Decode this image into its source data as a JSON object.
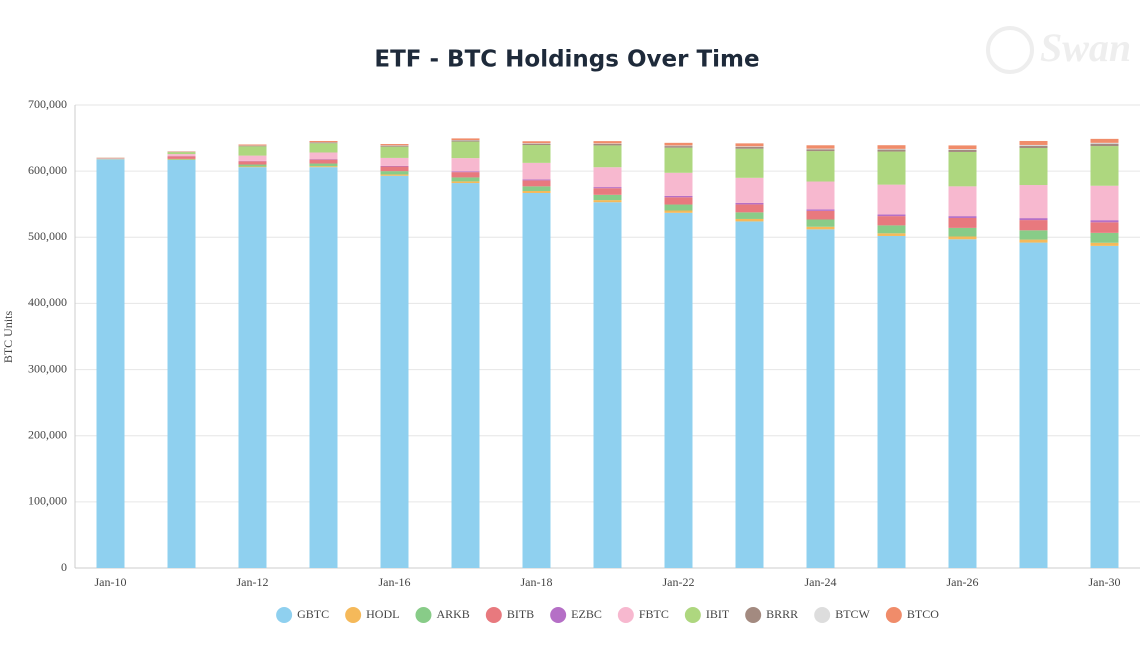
{
  "chart_data": {
    "type": "stacked_bar",
    "title": "ETF - BTC Holdings Over Time",
    "watermark": "Swan",
    "y_label": "BTC Units",
    "categories": [
      "Jan-10",
      null,
      "Jan-12",
      null,
      "Jan-16",
      null,
      "Jan-18",
      null,
      "Jan-22",
      null,
      "Jan-24",
      null,
      "Jan-26",
      null,
      "Jan-30"
    ],
    "series": [
      {
        "name": "GBTC",
        "color": "#8fd0ef",
        "values": [
          618000,
          617000,
          606000,
          606000,
          593000,
          582000,
          567000,
          553000,
          537000,
          524000,
          512000,
          502000,
          497000,
          492000,
          487000
        ]
      },
      {
        "name": "HODL",
        "color": "#f5b95a",
        "values": [
          300,
          500,
          1000,
          1500,
          2000,
          2500,
          3000,
          3200,
          3500,
          3700,
          3900,
          4000,
          4200,
          4500,
          4700
        ]
      },
      {
        "name": "ARKB",
        "color": "#88cc88",
        "values": [
          200,
          1000,
          3000,
          4000,
          5000,
          6000,
          7000,
          8000,
          9000,
          10000,
          11000,
          12000,
          13000,
          14000,
          15000
        ]
      },
      {
        "name": "BITB",
        "color": "#e8797e",
        "values": [
          500,
          4000,
          5000,
          6000,
          7000,
          8000,
          9000,
          10000,
          11000,
          12000,
          13000,
          14000,
          15000,
          15500,
          16000
        ]
      },
      {
        "name": "EZBC",
        "color": "#b56fc6",
        "values": [
          100,
          300,
          500,
          700,
          1000,
          1200,
          1500,
          1700,
          2000,
          2200,
          2400,
          2600,
          2800,
          3000,
          3200
        ]
      },
      {
        "name": "FBTC",
        "color": "#f7b8cf",
        "values": [
          500,
          3000,
          8000,
          10000,
          12000,
          20000,
          25000,
          30000,
          35000,
          38000,
          42000,
          45000,
          45000,
          50000,
          52000
        ]
      },
      {
        "name": "IBIT",
        "color": "#aed77f",
        "values": [
          500,
          3000,
          14000,
          14000,
          17000,
          25000,
          27000,
          33000,
          38000,
          44000,
          46000,
          50000,
          52000,
          56000,
          60000
        ]
      },
      {
        "name": "BRRR",
        "color": "#a38a80",
        "values": [
          100,
          500,
          1000,
          1200,
          1500,
          1700,
          2000,
          2200,
          2400,
          2600,
          2800,
          3000,
          3200,
          3400,
          3600
        ]
      },
      {
        "name": "BTCW",
        "color": "#dddddd",
        "values": [
          100,
          200,
          300,
          400,
          500,
          600,
          700,
          800,
          900,
          1000,
          1000,
          1100,
          1200,
          1200,
          1300
        ]
      },
      {
        "name": "BTCO",
        "color": "#f08c6a",
        "values": [
          300,
          500,
          1500,
          1800,
          2000,
          2500,
          3000,
          3500,
          4000,
          4500,
          5000,
          5500,
          5500,
          6000,
          6000
        ]
      }
    ],
    "ylim": [
      0,
      700000
    ],
    "yticks": [
      0,
      {
        "value": 100000,
        "label": "100,000"
      },
      {
        "value": 200000,
        "label": "200,000"
      },
      {
        "value": 300000,
        "label": "300,000"
      },
      {
        "value": 400000,
        "label": "400,000"
      },
      {
        "value": 500000,
        "label": "500,000"
      },
      {
        "value": 600000,
        "label": "600,000"
      },
      {
        "value": 700000,
        "label": "700,000"
      }
    ],
    "grid": true
  }
}
